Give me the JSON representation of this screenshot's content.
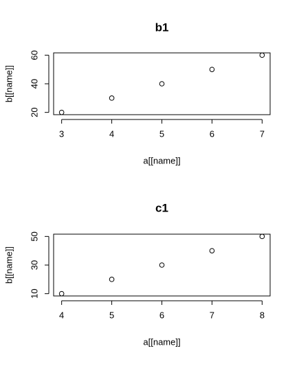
{
  "chart_data": [
    {
      "type": "scatter",
      "title": "b1",
      "x_label": "a[[name]]",
      "y_label": "b[[name]]",
      "x": [
        3,
        4,
        5,
        6,
        7
      ],
      "y": [
        20,
        30,
        40,
        50,
        60
      ],
      "xlim": [
        2.84,
        7.16
      ],
      "ylim": [
        18.4,
        61.6
      ],
      "xticks": [
        3,
        4,
        5,
        6,
        7
      ],
      "yticks": [
        20,
        40,
        60
      ],
      "color": "#000000"
    },
    {
      "type": "scatter",
      "title": "c1",
      "x_label": "a[[name]]",
      "y_label": "b[[name]]",
      "x": [
        4,
        5,
        6,
        7,
        8
      ],
      "y": [
        10,
        20,
        30,
        40,
        50
      ],
      "xlim": [
        3.84,
        8.16
      ],
      "ylim": [
        8.4,
        51.6
      ],
      "xticks": [
        4,
        5,
        6,
        7,
        8
      ],
      "yticks": [
        10,
        30,
        50
      ],
      "color": "#000000"
    }
  ]
}
